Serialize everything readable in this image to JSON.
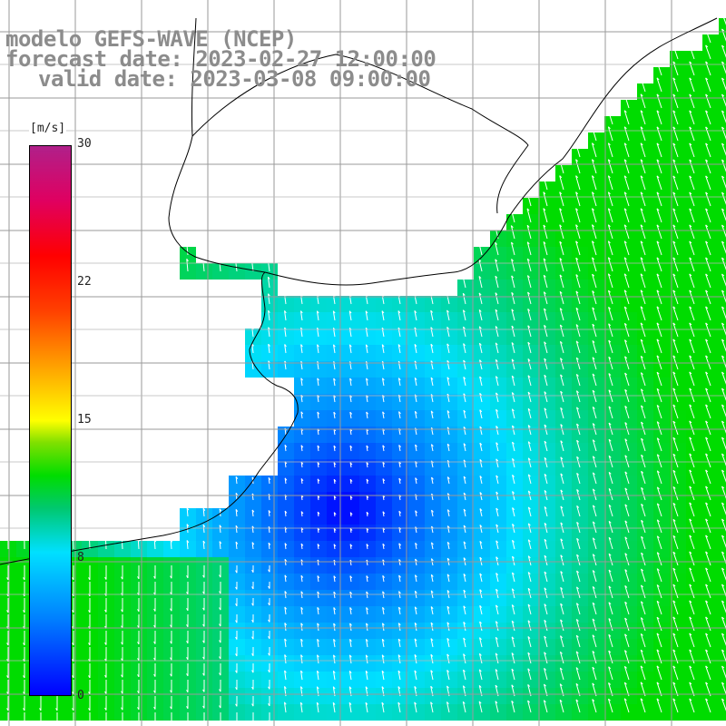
{
  "title": {
    "line1": "modelo GEFS-WAVE (NCEP)",
    "line2": "forecast date: 2023-02-27 12:00:00",
    "line3": "valid date: 2023-03-08 09:00:00"
  },
  "colorbar": {
    "unit": "[m/s]",
    "ticks": [
      {
        "label": "30",
        "value": 30
      },
      {
        "label": "22",
        "value": 22
      },
      {
        "label": "15",
        "value": 15
      },
      {
        "label": "8",
        "value": 8
      },
      {
        "label": "0",
        "value": 0
      }
    ],
    "min": 0,
    "max": 30
  },
  "colors": {
    "title_gray": "#8c8c8c",
    "land": "#ffffff",
    "grid": "#a0a0a0",
    "coast": "#000000",
    "arrow": "#ffffff"
  }
}
